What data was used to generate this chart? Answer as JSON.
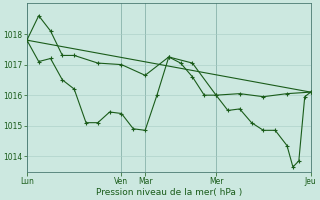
{
  "bg_color": "#cce8e0",
  "line_color": "#1a5c1a",
  "grid_color": "#a8ccc4",
  "xlabel": "Pression niveau de la mer( hPa )",
  "ylim": [
    1013.5,
    1019.0
  ],
  "yticks": [
    1014,
    1015,
    1016,
    1017,
    1018
  ],
  "xlim": [
    0,
    288
  ],
  "x_day_positions": [
    0,
    96,
    120,
    192,
    288
  ],
  "x_day_labels": [
    "Lun",
    "Ven",
    "Mar",
    "Mer",
    "Jeu"
  ],
  "trend_x": [
    0,
    288
  ],
  "trend_y": [
    1017.8,
    1016.1
  ],
  "series1_x": [
    0,
    12,
    24,
    36,
    48,
    72,
    96,
    120,
    144,
    168,
    192,
    216,
    240,
    264,
    288
  ],
  "series1_y": [
    1017.8,
    1018.6,
    1018.1,
    1017.3,
    1017.3,
    1017.05,
    1017.0,
    1016.65,
    1017.25,
    1017.05,
    1016.0,
    1016.05,
    1015.95,
    1016.05,
    1016.1
  ],
  "series2_x": [
    0,
    12,
    24,
    36,
    48,
    60,
    72,
    84,
    96,
    108,
    120,
    132,
    144,
    156,
    168,
    180,
    192,
    204,
    216,
    228,
    240,
    252,
    264,
    270,
    276,
    282,
    288
  ],
  "series2_y": [
    1017.8,
    1017.1,
    1017.2,
    1016.5,
    1016.2,
    1015.1,
    1015.1,
    1015.45,
    1015.4,
    1014.9,
    1014.85,
    1016.0,
    1017.25,
    1017.05,
    1016.6,
    1016.0,
    1016.0,
    1015.5,
    1015.55,
    1015.1,
    1014.85,
    1014.85,
    1014.35,
    1013.65,
    1013.85,
    1015.95,
    1016.1
  ]
}
